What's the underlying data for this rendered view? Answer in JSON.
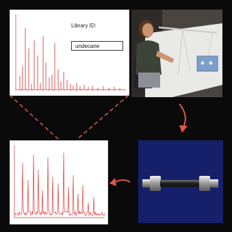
{
  "spectrum": {
    "library_label": "Library ID:",
    "library_value": "undecane"
  },
  "colors": {
    "trace": "#e05050",
    "arrow": "#e2574c",
    "background": "#0a0a0a",
    "tube_backdrop": "#16206a"
  },
  "icons": [
    "arrow-down-right-icon",
    "arrow-left-icon"
  ]
}
